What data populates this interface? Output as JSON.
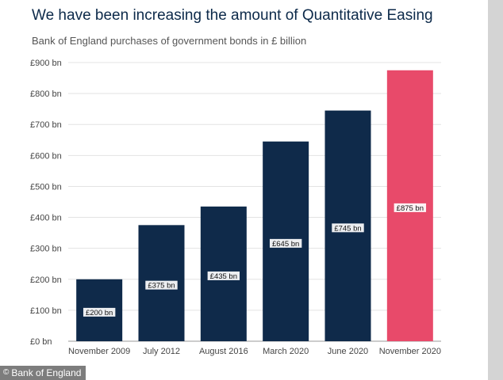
{
  "chart_data": {
    "type": "bar",
    "title": "We have been increasing the amount of Quantitative Easing",
    "subtitle": "Bank of England purchases of government bonds in £ billion",
    "categories": [
      "November 2009",
      "July 2012",
      "August 2016",
      "March 2020",
      "June 2020",
      "November 2020"
    ],
    "values": [
      200,
      375,
      435,
      645,
      745,
      875
    ],
    "value_labels": [
      "£200 bn",
      "£375 bn",
      "£435 bn",
      "£645 bn",
      "£745 bn",
      "£875 bn"
    ],
    "bar_colors": [
      "#0f2a4a",
      "#0f2a4a",
      "#0f2a4a",
      "#0f2a4a",
      "#0f2a4a",
      "#e84a6a"
    ],
    "ylim": [
      0,
      900
    ],
    "yticks": [
      0,
      100,
      200,
      300,
      400,
      500,
      600,
      700,
      800,
      900
    ],
    "ytick_labels": [
      "£0 bn",
      "£100 bn",
      "£200 bn",
      "£300 bn",
      "£400 bn",
      "£500 bn",
      "£600 bn",
      "£700 bn",
      "£800 bn",
      "£900 bn"
    ],
    "grid": true,
    "xlabel": "",
    "ylabel": ""
  },
  "credit": {
    "text": "Bank of England",
    "icon": "copyright-icon"
  }
}
